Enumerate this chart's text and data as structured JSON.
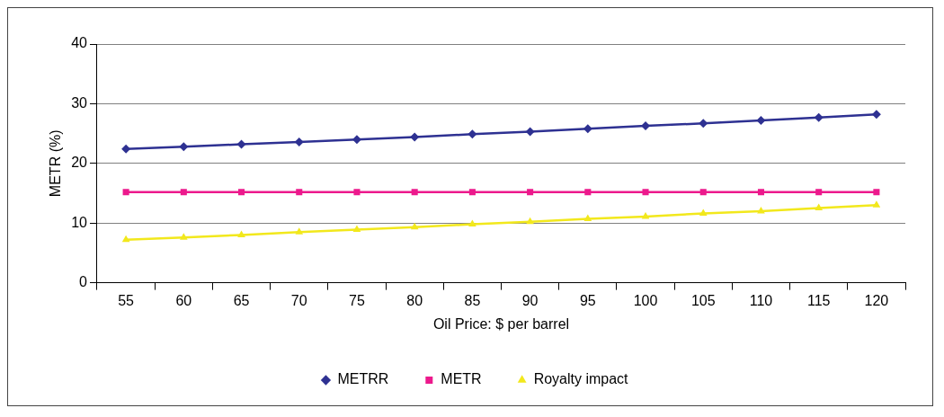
{
  "chart_data": {
    "type": "line",
    "xlabel": "Oil Price: $ per barrel",
    "ylabel": "METR (%)",
    "categories": [
      "55",
      "60",
      "65",
      "70",
      "75",
      "80",
      "85",
      "90",
      "95",
      "100",
      "105",
      "110",
      "115",
      "120"
    ],
    "series": [
      {
        "name": "METRR",
        "color": "#2e3192",
        "marker": "diamond",
        "values": [
          22.4,
          22.8,
          23.2,
          23.6,
          24.0,
          24.4,
          24.9,
          25.3,
          25.8,
          26.3,
          26.7,
          27.2,
          27.7,
          28.2
        ]
      },
      {
        "name": "METR",
        "color": "#ec198c",
        "marker": "square",
        "values": [
          15.2,
          15.2,
          15.2,
          15.2,
          15.2,
          15.2,
          15.2,
          15.2,
          15.2,
          15.2,
          15.2,
          15.2,
          15.2,
          15.2
        ]
      },
      {
        "name": "Royalty impact",
        "color": "#f2e81c",
        "marker": "triangle",
        "values": [
          7.2,
          7.6,
          8.0,
          8.5,
          8.9,
          9.3,
          9.8,
          10.2,
          10.7,
          11.1,
          11.6,
          12.0,
          12.5,
          13.0
        ]
      }
    ],
    "ylim": [
      0,
      40
    ],
    "yticks": [
      0,
      10,
      20,
      30,
      40
    ],
    "grid": "y",
    "legend": "bottom",
    "line_style": "solid"
  }
}
